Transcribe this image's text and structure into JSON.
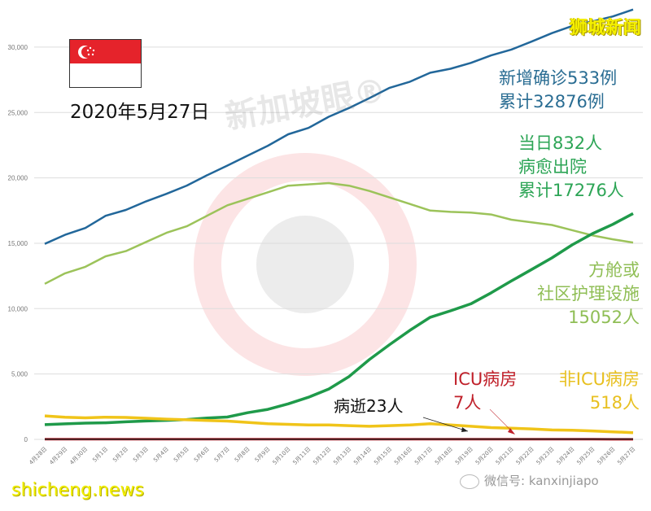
{
  "header": {
    "date_title": "2020年5月27日",
    "brand": "狮城新闻",
    "watermark": "新加坡眼®"
  },
  "annotations": {
    "cases_line1": "新增确诊533例",
    "cases_line2": "累计32876例",
    "discharged_line1": "当日832人",
    "discharged_line2": "病愈出院",
    "discharged_line3": "累计17276人",
    "community_line1": "方舱或",
    "community_line2": "社区护理设施",
    "community_line3": "15052人",
    "icu_line1": "ICU病房",
    "icu_line2": "7人",
    "nonicu_line1": "非ICU病房",
    "nonicu_line2": "518人",
    "deaths": "病逝23人"
  },
  "footer": {
    "site": "shicheng.news",
    "wechat": "微信号: kanxinjiapo"
  },
  "colors": {
    "cumulative": "#22679a",
    "community": "#9cc35a",
    "discharged": "#1f9a4a",
    "nonicu": "#f0c419",
    "icu": "#c0202a",
    "deaths": "#222222",
    "flag_red": "#e5232b"
  },
  "chart_data": {
    "type": "line",
    "title": "2020年5月27日",
    "xlabel": "",
    "ylabel": "",
    "ylim": [
      0,
      32876
    ],
    "yticks": [
      "0",
      "5,000",
      "10,000",
      "15,000",
      "20,000",
      "25,000",
      "30,000"
    ],
    "grid": true,
    "legend_position": "inline annotations",
    "categories": [
      "4月28日",
      "4月29日",
      "4月30日",
      "5月1日",
      "5月2日",
      "5月3日",
      "5月4日",
      "5月5日",
      "5月6日",
      "5月7日",
      "5月8日",
      "5月9日",
      "5月10日",
      "5月11日",
      "5月12日",
      "5月13日",
      "5月14日",
      "5月15日",
      "5月16日",
      "5月17日",
      "5月18日",
      "5月19日",
      "5月20日",
      "5月21日",
      "5月22日",
      "5月23日",
      "5月24日",
      "5月25日",
      "5月26日",
      "5月27日"
    ],
    "series": [
      {
        "name": "累计确诊",
        "color": "#22679a",
        "values": [
          14951,
          15641,
          16169,
          17101,
          17548,
          18205,
          18778,
          19410,
          20198,
          20939,
          21707,
          22460,
          23336,
          23822,
          24671,
          25346,
          26098,
          26891,
          27356,
          28038,
          28343,
          28794,
          29364,
          29812,
          30426,
          31068,
          31616,
          31960,
          32343,
          32876
        ]
      },
      {
        "name": "方舱或社区护理设施",
        "color": "#9cc35a",
        "values": [
          11900,
          12700,
          13200,
          14000,
          14400,
          15100,
          15800,
          16300,
          17100,
          17900,
          18400,
          18900,
          19400,
          19500,
          19600,
          19400,
          19000,
          18500,
          18000,
          17500,
          17400,
          17350,
          17200,
          16800,
          16600,
          16400,
          16000,
          15600,
          15300,
          15052
        ]
      },
      {
        "name": "病愈出院",
        "color": "#1f9a4a",
        "values": [
          1128,
          1188,
          1244,
          1268,
          1347,
          1408,
          1457,
          1519,
          1634,
          1712,
          2040,
          2296,
          2721,
          3225,
          3851,
          4809,
          6106,
          7248,
          8342,
          9340,
          9835,
          10365,
          11207,
          12117,
          12995,
          13882,
          14876,
          15738,
          16444,
          17276
        ]
      },
      {
        "name": "非ICU病房",
        "color": "#f0c419",
        "values": [
          1800,
          1700,
          1650,
          1700,
          1680,
          1620,
          1550,
          1500,
          1450,
          1400,
          1300,
          1200,
          1150,
          1100,
          1100,
          1050,
          1000,
          1050,
          1100,
          1200,
          1100,
          1000,
          900,
          850,
          800,
          720,
          700,
          650,
          580,
          518
        ]
      },
      {
        "name": "ICU病房",
        "color": "#c0202a",
        "values": [
          20,
          20,
          20,
          20,
          20,
          20,
          20,
          20,
          20,
          20,
          20,
          20,
          20,
          20,
          20,
          20,
          20,
          20,
          20,
          20,
          20,
          20,
          20,
          20,
          15,
          12,
          10,
          10,
          8,
          7
        ]
      },
      {
        "name": "病逝",
        "color": "#222222",
        "values": [
          14,
          14,
          15,
          16,
          16,
          17,
          18,
          18,
          18,
          18,
          19,
          20,
          20,
          20,
          20,
          20,
          21,
          21,
          21,
          22,
          22,
          22,
          22,
          22,
          22,
          22,
          23,
          23,
          23,
          23
        ]
      }
    ]
  }
}
